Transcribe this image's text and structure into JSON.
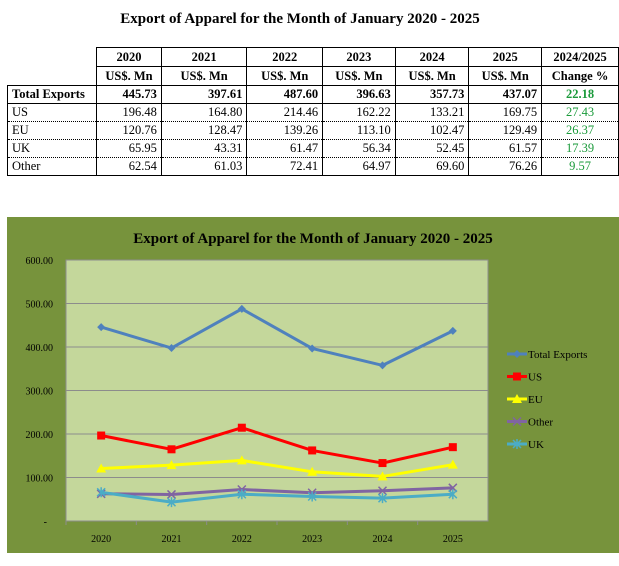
{
  "table": {
    "title": "Export of Apparel for the Month of January 2020 - 2025",
    "years": [
      "2020",
      "2021",
      "2022",
      "2023",
      "2024",
      "2025",
      "2024/2025"
    ],
    "units": [
      "US$. Mn",
      "US$. Mn",
      "US$. Mn",
      "US$. Mn",
      "US$. Mn",
      "US$. Mn",
      "Change %"
    ],
    "rows": [
      {
        "label": "Total Exports",
        "values": [
          "445.73",
          "397.61",
          "487.60",
          "396.63",
          "357.73",
          "437.07"
        ],
        "change": "22.18"
      },
      {
        "label": "US",
        "values": [
          "196.48",
          "164.80",
          "214.46",
          "162.22",
          "133.21",
          "169.75"
        ],
        "change": "27.43"
      },
      {
        "label": "EU",
        "values": [
          "120.76",
          "128.47",
          "139.26",
          "113.10",
          "102.47",
          "129.49"
        ],
        "change": "26.37"
      },
      {
        "label": "UK",
        "values": [
          "65.95",
          "43.31",
          "61.47",
          "56.34",
          "52.45",
          "61.57"
        ],
        "change": "17.39"
      },
      {
        "label": "Other",
        "values": [
          "62.54",
          "61.03",
          "72.41",
          "64.97",
          "69.60",
          "76.26"
        ],
        "change": "9.57"
      }
    ]
  },
  "chart_data": {
    "type": "line",
    "title": "Export of Apparel for the Month of January 2020 - 2025",
    "categories": [
      "2020",
      "2021",
      "2022",
      "2023",
      "2024",
      "2025"
    ],
    "ylim": [
      0,
      600
    ],
    "yticks": [
      "-",
      "100.00",
      "200.00",
      "300.00",
      "400.00",
      "500.00",
      "600.00"
    ],
    "grid": true,
    "legend": "right",
    "series": [
      {
        "name": "Total Exports",
        "color": "#4f81bd",
        "marker": "diamond",
        "values": [
          445.73,
          397.61,
          487.6,
          396.63,
          357.73,
          437.07
        ]
      },
      {
        "name": "US",
        "color": "#ff0000",
        "marker": "square",
        "values": [
          196.48,
          164.8,
          214.46,
          162.22,
          133.21,
          169.75
        ]
      },
      {
        "name": "EU",
        "color": "#ffff00",
        "marker": "triangle",
        "values": [
          120.76,
          128.47,
          139.26,
          113.1,
          102.47,
          129.49
        ]
      },
      {
        "name": "Other",
        "color": "#8064a2",
        "marker": "x",
        "values": [
          62.54,
          61.03,
          72.41,
          64.97,
          69.6,
          76.26
        ]
      },
      {
        "name": "UK",
        "color": "#4bacc6",
        "marker": "star",
        "values": [
          65.95,
          43.31,
          61.47,
          56.34,
          52.45,
          61.57
        ]
      }
    ],
    "colors": {
      "background": "#77933c",
      "plot": "#c4d79b"
    }
  }
}
